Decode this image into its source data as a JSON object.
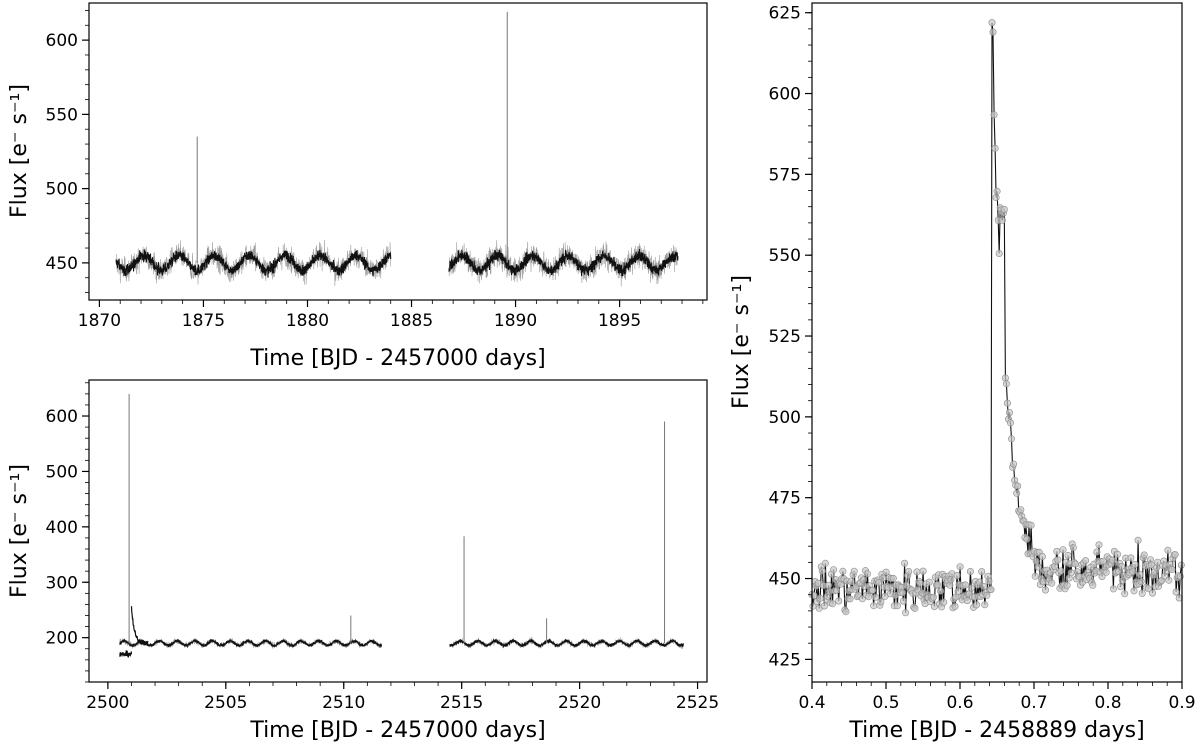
{
  "chart_data": [
    {
      "id": "sector1",
      "type": "line",
      "title": "",
      "xlabel": "Time [BJD - 2457000 days]",
      "ylabel": "Flux [e⁻ s⁻¹]",
      "xlim": [
        1869.5,
        1899.2
      ],
      "ylim": [
        425,
        625
      ],
      "xticks": [
        1870,
        1875,
        1880,
        1885,
        1890,
        1895
      ],
      "yticks": [
        450,
        500,
        550,
        600
      ],
      "grid": false,
      "series": [
        {
          "segments": [
            [
              1870.8,
              1884.0
            ],
            [
              1886.8,
              1897.8
            ]
          ],
          "baseline": 450,
          "scatter": 8,
          "modulation": 5,
          "period": 1.7
        }
      ],
      "flares": [
        {
          "x": 1874.7,
          "y": 535
        },
        {
          "x": 1889.6,
          "y": 619
        }
      ]
    },
    {
      "id": "sector2",
      "type": "line",
      "title": "",
      "xlabel": "Time [BJD - 2457000 days]",
      "ylabel": "Flux [e⁻ s⁻¹]",
      "xlim": [
        2499.2,
        2525.4
      ],
      "ylim": [
        120,
        665
      ],
      "xticks": [
        2500,
        2505,
        2510,
        2515,
        2520,
        2525
      ],
      "yticks": [
        200,
        300,
        400,
        500,
        600
      ],
      "grid": false,
      "series": [
        {
          "segments": [
            [
              2500.5,
              2511.6
            ],
            [
              2514.5,
              2524.4
            ]
          ],
          "baseline": 190,
          "scatter": 5,
          "modulation": 4,
          "period": 0.75
        }
      ],
      "flares": [
        {
          "x": 2500.9,
          "y": 640
        },
        {
          "x": 2515.1,
          "y": 383
        },
        {
          "x": 2518.6,
          "y": 235
        },
        {
          "x": 2510.3,
          "y": 240
        },
        {
          "x": 2523.6,
          "y": 590
        }
      ]
    },
    {
      "id": "flare-zoom",
      "type": "line",
      "title": "",
      "xlabel": "Time [BJD - 2458889 days]",
      "ylabel": "Flux [e⁻ s⁻¹]",
      "xlim": [
        0.4,
        0.9
      ],
      "ylim": [
        418,
        628
      ],
      "xticks": [
        0.4,
        0.5,
        0.6,
        0.7,
        0.8,
        0.9
      ],
      "yticks": [
        425,
        450,
        475,
        500,
        525,
        550,
        575,
        600,
        625
      ],
      "grid": false,
      "series": [
        {
          "baseline": 447,
          "scatter": 7,
          "peak_x": 0.645,
          "peak_y": 619,
          "secondary_x": 0.657,
          "secondary_y": 564,
          "cadence": 0.00139
        }
      ]
    }
  ]
}
